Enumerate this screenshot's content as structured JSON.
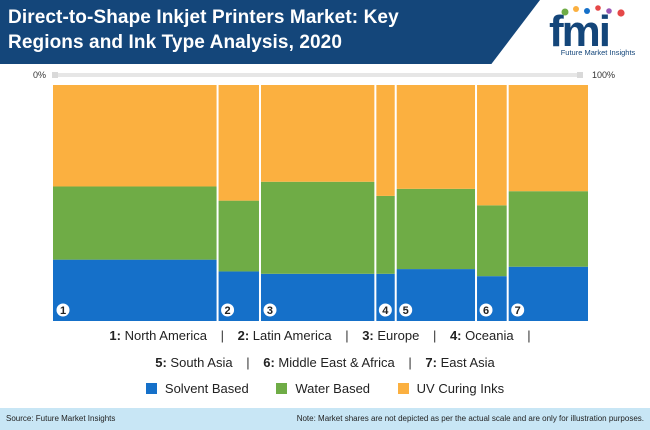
{
  "header": {
    "title": "Direct-to-Shape Inkjet Printers Market: Key Regions and Ink Type Analysis, 2020",
    "logo_text": "fmi",
    "logo_caption": "Future Market Insights"
  },
  "chart_data": {
    "type": "bar",
    "subtype": "marimekko (100% stacked, variable width)",
    "title": "Direct-to-Shape Inkjet Printers Market: Key Regions and Ink Type Analysis, 2020",
    "x_axis_start_label": "0%",
    "x_axis_end_label": "100%",
    "categories": [
      "1",
      "2",
      "3",
      "4",
      "5",
      "6",
      "7"
    ],
    "widths": [
      29.1,
      7.5,
      20.4,
      3.6,
      14.2,
      5.6,
      14.2
    ],
    "series": [
      {
        "name": "Solvent Based",
        "color": "#1570c9",
        "values": [
          26,
          21,
          20,
          20,
          22,
          19,
          23
        ]
      },
      {
        "name": "Water Based",
        "color": "#6fac46",
        "values": [
          31,
          30,
          39,
          33,
          34,
          30,
          32
        ]
      },
      {
        "name": "UV Curing Inks",
        "color": "#fbb040",
        "values": [
          43,
          49,
          41,
          47,
          44,
          51,
          45
        ]
      }
    ],
    "legend_position": "bottom",
    "grid": false
  },
  "regions_legend": [
    {
      "num": "1:",
      "name": "North America"
    },
    {
      "num": "2:",
      "name": "Latin America"
    },
    {
      "num": "3:",
      "name": "Europe"
    },
    {
      "num": "4:",
      "name": "Oceania"
    },
    {
      "num": "5:",
      "name": "South Asia"
    },
    {
      "num": "6:",
      "name": "Middle East & Africa"
    },
    {
      "num": "7:",
      "name": "East Asia"
    }
  ],
  "separator": "|",
  "footer": {
    "source": "Source: Future Market Insights",
    "note": "Note: Market shares are not depicted as per the actual scale and are only for illustration purposes."
  }
}
